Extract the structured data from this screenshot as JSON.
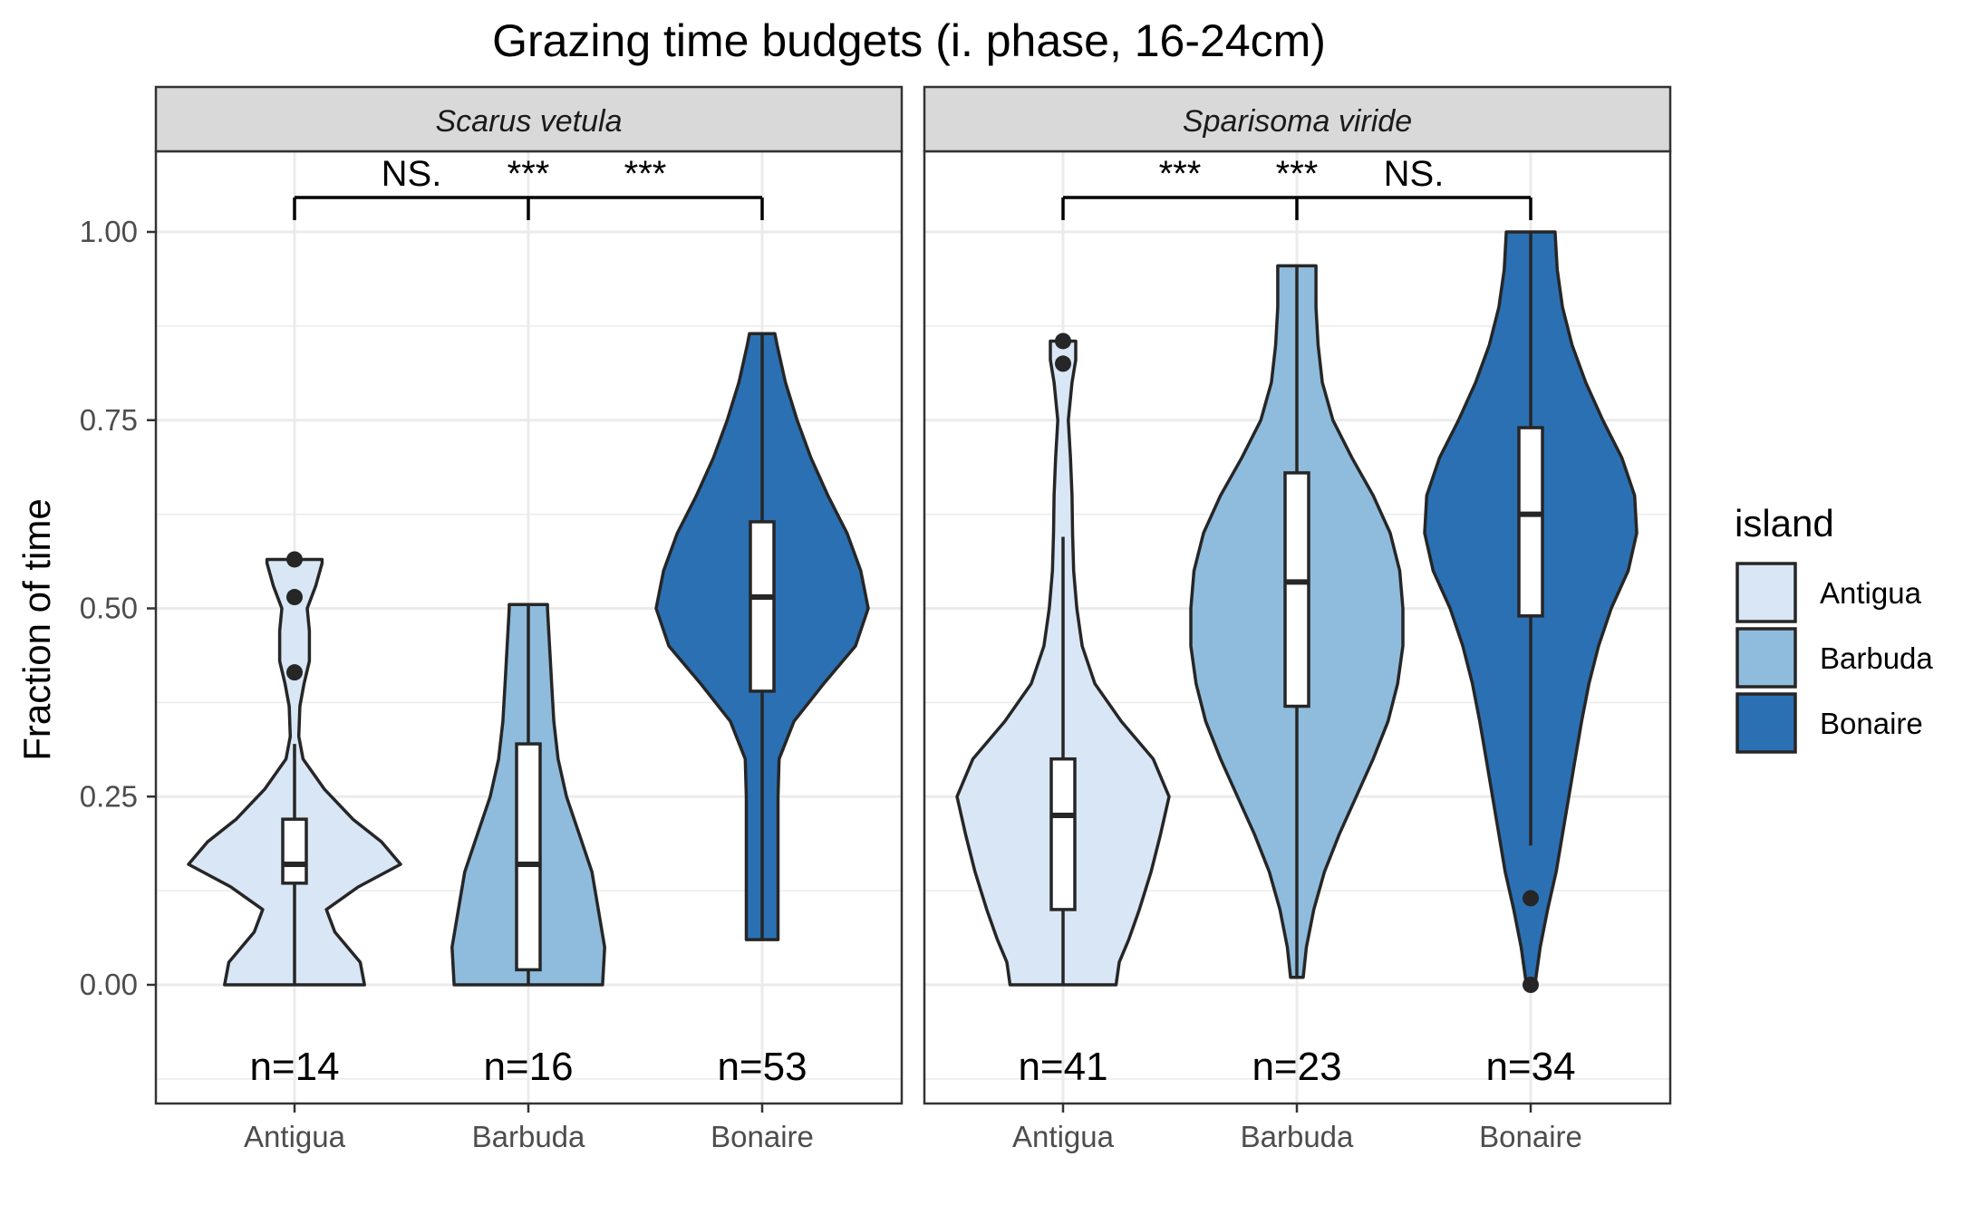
{
  "chart_data": {
    "type": "violin",
    "title": "Grazing time budgets (i. phase, 16-24cm)",
    "ylabel": "Fraction of time",
    "xlabel": "",
    "ylim": [
      -0.15,
      1.1
    ],
    "y_ticks": [
      0.0,
      0.25,
      0.5,
      0.75,
      1.0
    ],
    "y_tick_labels": [
      "0.00",
      "0.25",
      "0.50",
      "0.75",
      "1.00"
    ],
    "categories": [
      "Antigua",
      "Barbuda",
      "Bonaire"
    ],
    "grid": true,
    "legend": {
      "title": "island",
      "placement": "right",
      "entries": [
        {
          "label": "Antigua",
          "color": "#d8e6f5"
        },
        {
          "label": "Barbuda",
          "color": "#8fbcdc"
        },
        {
          "label": "Bonaire",
          "color": "#2b70b3"
        }
      ]
    },
    "panels": [
      {
        "species": "Scarus vetula",
        "significance": [
          "NS.",
          "***",
          "***"
        ],
        "groups": [
          {
            "island": "Antigua",
            "n_label": "n=14",
            "q1": 0.135,
            "median": 0.16,
            "q3": 0.22,
            "whisker_low": 0.0,
            "whisker_high": 0.32,
            "outliers": [
              0.415,
              0.515,
              0.565
            ],
            "density": [
              [
                0.0,
                0.66
              ],
              [
                0.03,
                0.62
              ],
              [
                0.07,
                0.38
              ],
              [
                0.1,
                0.3
              ],
              [
                0.13,
                0.6
              ],
              [
                0.16,
                1.0
              ],
              [
                0.19,
                0.82
              ],
              [
                0.22,
                0.55
              ],
              [
                0.26,
                0.28
              ],
              [
                0.3,
                0.08
              ],
              [
                0.33,
                0.04
              ],
              [
                0.37,
                0.05
              ],
              [
                0.4,
                0.09
              ],
              [
                0.43,
                0.14
              ],
              [
                0.47,
                0.14
              ],
              [
                0.5,
                0.12
              ],
              [
                0.53,
                0.2
              ],
              [
                0.56,
                0.26
              ],
              [
                0.565,
                0.26
              ]
            ]
          },
          {
            "island": "Barbuda",
            "n_label": "n=16",
            "q1": 0.02,
            "median": 0.16,
            "q3": 0.32,
            "whisker_low": 0.0,
            "whisker_high": 0.505,
            "outliers": [],
            "density": [
              [
                0.0,
                0.7
              ],
              [
                0.05,
                0.72
              ],
              [
                0.1,
                0.66
              ],
              [
                0.15,
                0.6
              ],
              [
                0.2,
                0.48
              ],
              [
                0.25,
                0.36
              ],
              [
                0.3,
                0.28
              ],
              [
                0.35,
                0.24
              ],
              [
                0.4,
                0.22
              ],
              [
                0.45,
                0.2
              ],
              [
                0.5,
                0.18
              ],
              [
                0.505,
                0.18
              ]
            ]
          },
          {
            "island": "Bonaire",
            "n_label": "n=53",
            "q1": 0.39,
            "median": 0.515,
            "q3": 0.615,
            "whisker_low": 0.06,
            "whisker_high": 0.865,
            "outliers": [],
            "density": [
              [
                0.06,
                0.15
              ],
              [
                0.1,
                0.15
              ],
              [
                0.15,
                0.15
              ],
              [
                0.2,
                0.15
              ],
              [
                0.25,
                0.15
              ],
              [
                0.3,
                0.16
              ],
              [
                0.35,
                0.3
              ],
              [
                0.4,
                0.58
              ],
              [
                0.45,
                0.88
              ],
              [
                0.5,
                1.0
              ],
              [
                0.55,
                0.93
              ],
              [
                0.6,
                0.8
              ],
              [
                0.65,
                0.62
              ],
              [
                0.7,
                0.46
              ],
              [
                0.75,
                0.33
              ],
              [
                0.8,
                0.22
              ],
              [
                0.85,
                0.14
              ],
              [
                0.865,
                0.12
              ]
            ]
          }
        ]
      },
      {
        "species": "Sparisoma viride",
        "significance": [
          "***",
          "***",
          "NS."
        ],
        "groups": [
          {
            "island": "Antigua",
            "n_label": "n=41",
            "q1": 0.1,
            "median": 0.225,
            "q3": 0.3,
            "whisker_low": 0.0,
            "whisker_high": 0.595,
            "outliers": [
              0.825,
              0.855
            ],
            "density": [
              [
                0.0,
                0.5
              ],
              [
                0.03,
                0.53
              ],
              [
                0.06,
                0.62
              ],
              [
                0.1,
                0.72
              ],
              [
                0.15,
                0.83
              ],
              [
                0.2,
                0.92
              ],
              [
                0.25,
                1.0
              ],
              [
                0.3,
                0.85
              ],
              [
                0.35,
                0.55
              ],
              [
                0.4,
                0.3
              ],
              [
                0.45,
                0.18
              ],
              [
                0.5,
                0.13
              ],
              [
                0.55,
                0.1
              ],
              [
                0.6,
                0.09
              ],
              [
                0.65,
                0.085
              ],
              [
                0.7,
                0.07
              ],
              [
                0.75,
                0.05
              ],
              [
                0.8,
                0.085
              ],
              [
                0.83,
                0.12
              ],
              [
                0.855,
                0.12
              ]
            ]
          },
          {
            "island": "Barbuda",
            "n_label": "n=23",
            "q1": 0.37,
            "median": 0.535,
            "q3": 0.68,
            "whisker_low": 0.01,
            "whisker_high": 0.955,
            "outliers": [],
            "density": [
              [
                0.01,
                0.06
              ],
              [
                0.05,
                0.09
              ],
              [
                0.1,
                0.16
              ],
              [
                0.15,
                0.26
              ],
              [
                0.2,
                0.4
              ],
              [
                0.25,
                0.56
              ],
              [
                0.3,
                0.72
              ],
              [
                0.35,
                0.86
              ],
              [
                0.4,
                0.95
              ],
              [
                0.45,
                1.0
              ],
              [
                0.5,
                1.0
              ],
              [
                0.55,
                0.97
              ],
              [
                0.6,
                0.88
              ],
              [
                0.65,
                0.72
              ],
              [
                0.7,
                0.52
              ],
              [
                0.75,
                0.34
              ],
              [
                0.8,
                0.24
              ],
              [
                0.85,
                0.2
              ],
              [
                0.9,
                0.18
              ],
              [
                0.955,
                0.18
              ]
            ]
          },
          {
            "island": "Bonaire",
            "n_label": "n=34",
            "q1": 0.49,
            "median": 0.625,
            "q3": 0.74,
            "whisker_low": 0.185,
            "whisker_high": 1.0,
            "outliers": [
              0.115,
              0.0
            ],
            "density": [
              [
                0.0,
                0.04
              ],
              [
                0.05,
                0.09
              ],
              [
                0.1,
                0.16
              ],
              [
                0.15,
                0.24
              ],
              [
                0.2,
                0.3
              ],
              [
                0.25,
                0.36
              ],
              [
                0.3,
                0.42
              ],
              [
                0.35,
                0.48
              ],
              [
                0.4,
                0.55
              ],
              [
                0.45,
                0.64
              ],
              [
                0.5,
                0.76
              ],
              [
                0.55,
                0.92
              ],
              [
                0.6,
                1.0
              ],
              [
                0.65,
                0.98
              ],
              [
                0.7,
                0.86
              ],
              [
                0.75,
                0.68
              ],
              [
                0.8,
                0.52
              ],
              [
                0.85,
                0.39
              ],
              [
                0.9,
                0.3
              ],
              [
                0.95,
                0.25
              ],
              [
                1.0,
                0.23
              ]
            ]
          }
        ]
      }
    ]
  }
}
